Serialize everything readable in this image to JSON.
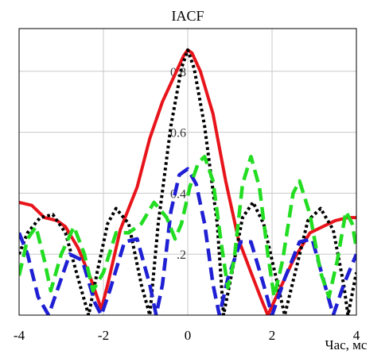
{
  "chart_data": {
    "type": "line",
    "title": "IACF",
    "xlabel": "Час, мс",
    "ylabel": "",
    "xlim": [
      -4,
      4
    ],
    "ylim": [
      0,
      0.94
    ],
    "grid": true,
    "x_ticks": [
      {
        "value": -4,
        "label": "-4"
      },
      {
        "value": -2,
        "label": "-2"
      },
      {
        "value": 0,
        "label": "0"
      },
      {
        "value": 2,
        "label": "2"
      },
      {
        "value": 4,
        "label": "4"
      }
    ],
    "y_ticks": [
      {
        "value": 0.2,
        "label": ".2"
      },
      {
        "value": 0.4,
        "label": "0.4"
      },
      {
        "value": 0.6,
        "label": "0.6"
      },
      {
        "value": 0.8,
        "label": "0.8"
      }
    ],
    "series": [
      {
        "color": "#e8141b",
        "dash": "solid",
        "points": [
          [
            -4.0,
            0.37
          ],
          [
            -3.7,
            0.36
          ],
          [
            -3.4,
            0.32
          ],
          [
            -3.1,
            0.31
          ],
          [
            -2.9,
            0.29
          ],
          [
            -2.6,
            0.22
          ],
          [
            -2.3,
            0.12
          ],
          [
            -2.05,
            0.02
          ],
          [
            -1.9,
            0.1
          ],
          [
            -1.6,
            0.28
          ],
          [
            -1.2,
            0.42
          ],
          [
            -0.9,
            0.58
          ],
          [
            -0.6,
            0.7
          ],
          [
            -0.3,
            0.79
          ],
          [
            -0.1,
            0.85
          ],
          [
            0.0,
            0.87
          ],
          [
            0.1,
            0.86
          ],
          [
            0.3,
            0.8
          ],
          [
            0.6,
            0.66
          ],
          [
            0.9,
            0.44
          ],
          [
            1.2,
            0.25
          ],
          [
            1.5,
            0.14
          ],
          [
            1.75,
            0.05
          ],
          [
            1.9,
            0.0
          ],
          [
            2.1,
            0.06
          ],
          [
            2.5,
            0.18
          ],
          [
            2.9,
            0.27
          ],
          [
            3.2,
            0.29
          ],
          [
            3.5,
            0.31
          ],
          [
            3.8,
            0.32
          ],
          [
            4.0,
            0.32
          ]
        ]
      },
      {
        "color": "#000000",
        "dash": "dotted",
        "points": [
          [
            -4.0,
            0.2
          ],
          [
            -3.8,
            0.27
          ],
          [
            -3.5,
            0.32
          ],
          [
            -3.2,
            0.33
          ],
          [
            -2.9,
            0.27
          ],
          [
            -2.6,
            0.12
          ],
          [
            -2.35,
            0.0
          ],
          [
            -2.15,
            0.14
          ],
          [
            -1.9,
            0.3
          ],
          [
            -1.7,
            0.35
          ],
          [
            -1.4,
            0.3
          ],
          [
            -1.1,
            0.1
          ],
          [
            -0.9,
            0.0
          ],
          [
            -0.7,
            0.3
          ],
          [
            -0.4,
            0.62
          ],
          [
            -0.15,
            0.81
          ],
          [
            0.0,
            0.87
          ],
          [
            0.15,
            0.81
          ],
          [
            0.4,
            0.62
          ],
          [
            0.7,
            0.3
          ],
          [
            0.85,
            0.0
          ],
          [
            1.05,
            0.14
          ],
          [
            1.3,
            0.32
          ],
          [
            1.55,
            0.37
          ],
          [
            1.8,
            0.3
          ],
          [
            2.1,
            0.12
          ],
          [
            2.3,
            0.0
          ],
          [
            2.55,
            0.14
          ],
          [
            2.85,
            0.31
          ],
          [
            3.15,
            0.35
          ],
          [
            3.45,
            0.28
          ],
          [
            3.7,
            0.1
          ],
          [
            3.8,
            0.0
          ],
          [
            4.0,
            0.14
          ]
        ]
      },
      {
        "color": "#1f1fd4",
        "dash": "dashed",
        "points": [
          [
            -4.0,
            0.27
          ],
          [
            -3.8,
            0.2
          ],
          [
            -3.55,
            0.06
          ],
          [
            -3.3,
            0.0
          ],
          [
            -3.05,
            0.1
          ],
          [
            -2.8,
            0.2
          ],
          [
            -2.5,
            0.18
          ],
          [
            -2.2,
            0.04
          ],
          [
            -2.05,
            0.0
          ],
          [
            -1.85,
            0.08
          ],
          [
            -1.5,
            0.24
          ],
          [
            -1.2,
            0.25
          ],
          [
            -0.9,
            0.1
          ],
          [
            -0.75,
            0.0
          ],
          [
            -0.6,
            0.1
          ],
          [
            -0.4,
            0.34
          ],
          [
            -0.2,
            0.46
          ],
          [
            0.0,
            0.48
          ],
          [
            0.2,
            0.43
          ],
          [
            0.4,
            0.3
          ],
          [
            0.6,
            0.1
          ],
          [
            0.75,
            0.0
          ],
          [
            0.95,
            0.12
          ],
          [
            1.25,
            0.24
          ],
          [
            1.5,
            0.24
          ],
          [
            1.8,
            0.1
          ],
          [
            2.0,
            0.0
          ],
          [
            2.3,
            0.12
          ],
          [
            2.65,
            0.24
          ],
          [
            2.95,
            0.25
          ],
          [
            3.25,
            0.1
          ],
          [
            3.45,
            0.0
          ],
          [
            3.7,
            0.1
          ],
          [
            4.0,
            0.2
          ]
        ]
      },
      {
        "color": "#22dd22",
        "dash": "dashed",
        "points": [
          [
            -4.0,
            0.13
          ],
          [
            -3.8,
            0.25
          ],
          [
            -3.6,
            0.29
          ],
          [
            -3.4,
            0.18
          ],
          [
            -3.25,
            0.08
          ],
          [
            -3.0,
            0.2
          ],
          [
            -2.7,
            0.29
          ],
          [
            -2.45,
            0.2
          ],
          [
            -2.25,
            0.08
          ],
          [
            -2.0,
            0.14
          ],
          [
            -1.7,
            0.27
          ],
          [
            -1.4,
            0.27
          ],
          [
            -1.1,
            0.3
          ],
          [
            -0.8,
            0.37
          ],
          [
            -0.5,
            0.32
          ],
          [
            -0.3,
            0.25
          ],
          [
            -0.15,
            0.3
          ],
          [
            0.05,
            0.42
          ],
          [
            0.25,
            0.5
          ],
          [
            0.4,
            0.52
          ],
          [
            0.6,
            0.44
          ],
          [
            0.8,
            0.23
          ],
          [
            0.95,
            0.09
          ],
          [
            1.1,
            0.18
          ],
          [
            1.3,
            0.43
          ],
          [
            1.5,
            0.52
          ],
          [
            1.7,
            0.42
          ],
          [
            1.9,
            0.2
          ],
          [
            2.05,
            0.06
          ],
          [
            2.25,
            0.18
          ],
          [
            2.5,
            0.4
          ],
          [
            2.65,
            0.44
          ],
          [
            2.9,
            0.33
          ],
          [
            3.15,
            0.14
          ],
          [
            3.35,
            0.06
          ],
          [
            3.55,
            0.18
          ],
          [
            3.75,
            0.34
          ],
          [
            3.9,
            0.3
          ],
          [
            4.0,
            0.22
          ]
        ]
      }
    ]
  }
}
